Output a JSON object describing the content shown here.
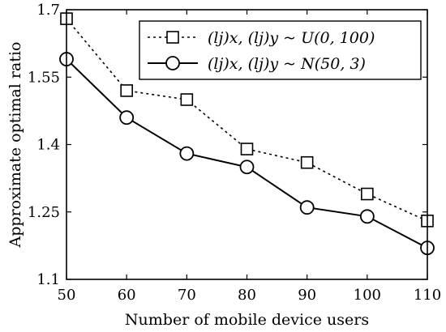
{
  "chart_data": {
    "type": "line",
    "xlabel": "Number of mobile device users",
    "ylabel": "Approximate optimal ratio",
    "xlim": [
      50,
      110
    ],
    "ylim": [
      1.1,
      1.7
    ],
    "x": [
      50,
      60,
      70,
      80,
      90,
      100,
      110
    ],
    "xticks": [
      "50",
      "60",
      "70",
      "80",
      "90",
      "100",
      "110"
    ],
    "yticks": [
      {
        "value": 1.1,
        "label": "1.1"
      },
      {
        "value": 1.25,
        "label": "1.25"
      },
      {
        "value": 1.4,
        "label": "1.4"
      },
      {
        "value": 1.55,
        "label": "1.55"
      },
      {
        "value": 1.7,
        "label": "1.7"
      }
    ],
    "grid": false,
    "legend_position": "top-right",
    "series": [
      {
        "name": "(l_j)_x, (l_j)_y ~ U(0, 100)",
        "line_style": "dotted",
        "marker": "square",
        "color": "#000000",
        "values": [
          1.68,
          1.52,
          1.5,
          1.39,
          1.36,
          1.29,
          1.23
        ]
      },
      {
        "name": "(l_j)_x, (l_j)_y ~ N(50, 3)",
        "line_style": "solid",
        "marker": "circle",
        "color": "#000000",
        "values": [
          1.59,
          1.46,
          1.38,
          1.35,
          1.26,
          1.24,
          1.17
        ]
      }
    ]
  }
}
